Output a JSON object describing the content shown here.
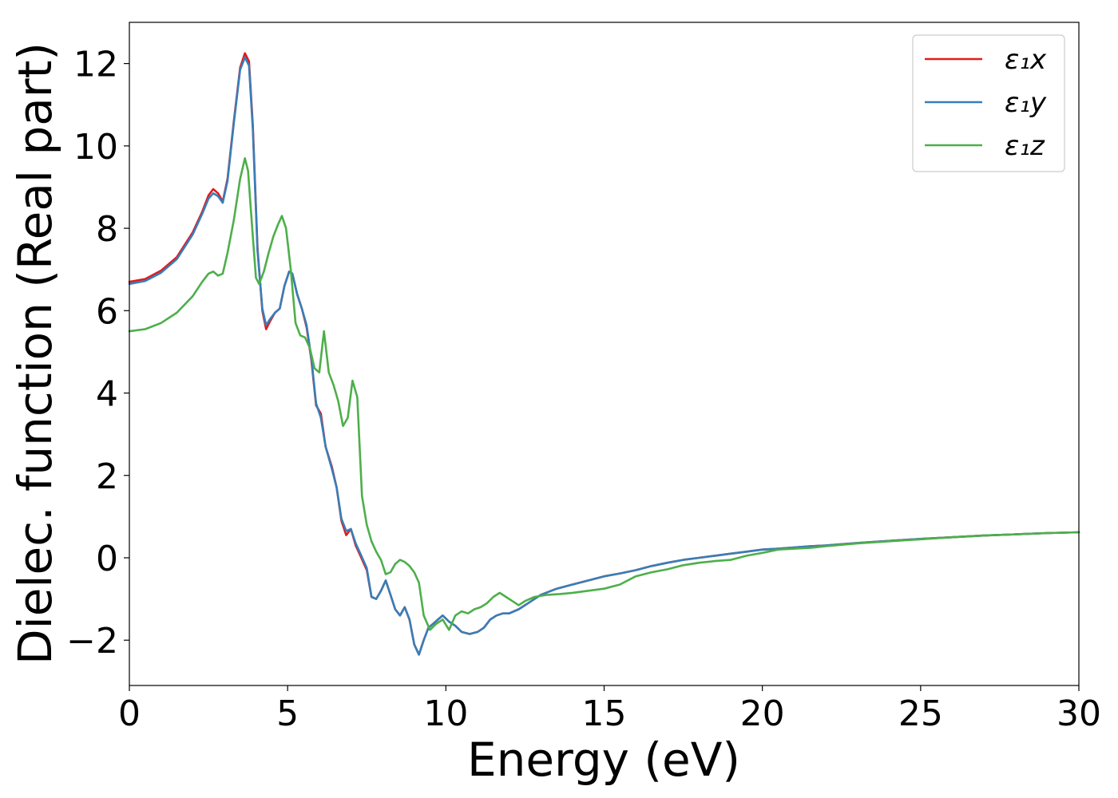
{
  "chart_data": {
    "type": "line",
    "xlabel": "Energy (eV)",
    "ylabel": "Dielec. function (Real part)",
    "xlim": [
      0,
      30
    ],
    "ylim": [
      -3.1,
      13.0
    ],
    "xticks": [
      0,
      5,
      10,
      15,
      20,
      25,
      30
    ],
    "xtick_labels": [
      "0",
      "5",
      "10",
      "15",
      "20",
      "25",
      "30"
    ],
    "yticks": [
      -2,
      0,
      2,
      4,
      6,
      8,
      10,
      12
    ],
    "ytick_labels": [
      "−2",
      "0",
      "2",
      "4",
      "6",
      "8",
      "10",
      "12"
    ],
    "grid": false,
    "legend_position": "top-right",
    "series": [
      {
        "name": "ε₁x",
        "color": "#e41a1c",
        "x": [
          0,
          0.5,
          1.0,
          1.5,
          2.0,
          2.3,
          2.5,
          2.65,
          2.8,
          2.95,
          3.1,
          3.3,
          3.5,
          3.65,
          3.78,
          3.9,
          4.05,
          4.2,
          4.32,
          4.45,
          4.6,
          4.75,
          4.9,
          5.05,
          5.15,
          5.3,
          5.45,
          5.6,
          5.75,
          5.9,
          6.05,
          6.2,
          6.4,
          6.55,
          6.7,
          6.85,
          7.0,
          7.15,
          7.3,
          7.5,
          7.65,
          7.8,
          7.95,
          8.1,
          8.25,
          8.4,
          8.55,
          8.7,
          8.85,
          9.0,
          9.15,
          9.3,
          9.45,
          9.6,
          9.75,
          9.9,
          10.1,
          10.3,
          10.5,
          10.75,
          11.0,
          11.2,
          11.4,
          11.6,
          11.8,
          12.0,
          12.3,
          12.6,
          13.0,
          13.5,
          14.0,
          14.5,
          15.0,
          15.5,
          16.0,
          16.5,
          17.0,
          17.5,
          18.0,
          18.5,
          19.0,
          19.5,
          20.0,
          20.5,
          21.0,
          21.5,
          22.0,
          23.0,
          24.0,
          25.0,
          26.0,
          27.0,
          28.0,
          29.0,
          30.0
        ],
        "y": [
          6.7,
          6.77,
          6.97,
          7.3,
          7.9,
          8.4,
          8.8,
          8.95,
          8.85,
          8.65,
          9.2,
          10.6,
          11.9,
          12.25,
          12.05,
          10.5,
          7.5,
          6.0,
          5.55,
          5.75,
          5.95,
          6.05,
          6.6,
          6.95,
          6.9,
          6.4,
          6.05,
          5.6,
          4.8,
          3.7,
          3.5,
          2.7,
          2.2,
          1.7,
          0.9,
          0.55,
          0.7,
          0.3,
          0.05,
          -0.3,
          -0.95,
          -1.0,
          -0.8,
          -0.55,
          -0.9,
          -1.25,
          -1.4,
          -1.2,
          -1.5,
          -2.1,
          -2.35,
          -2.0,
          -1.7,
          -1.6,
          -1.5,
          -1.4,
          -1.55,
          -1.65,
          -1.8,
          -1.85,
          -1.8,
          -1.7,
          -1.5,
          -1.4,
          -1.35,
          -1.35,
          -1.25,
          -1.1,
          -0.9,
          -0.75,
          -0.65,
          -0.55,
          -0.45,
          -0.38,
          -0.3,
          -0.2,
          -0.12,
          -0.05,
          0.0,
          0.05,
          0.1,
          0.15,
          0.2,
          0.22,
          0.25,
          0.28,
          0.3,
          0.36,
          0.41,
          0.46,
          0.5,
          0.54,
          0.57,
          0.6,
          0.62
        ]
      },
      {
        "name": "ε₁y",
        "color": "#377eb8",
        "x": [
          0,
          0.5,
          1.0,
          1.5,
          2.0,
          2.3,
          2.5,
          2.65,
          2.8,
          2.95,
          3.1,
          3.3,
          3.5,
          3.65,
          3.78,
          3.9,
          4.05,
          4.2,
          4.32,
          4.45,
          4.6,
          4.75,
          4.9,
          5.05,
          5.15,
          5.3,
          5.45,
          5.6,
          5.75,
          5.9,
          6.05,
          6.2,
          6.4,
          6.55,
          6.7,
          6.85,
          7.0,
          7.15,
          7.3,
          7.5,
          7.65,
          7.8,
          7.95,
          8.1,
          8.25,
          8.4,
          8.55,
          8.7,
          8.85,
          9.0,
          9.15,
          9.3,
          9.45,
          9.6,
          9.75,
          9.9,
          10.1,
          10.3,
          10.5,
          10.75,
          11.0,
          11.2,
          11.4,
          11.6,
          11.8,
          12.0,
          12.3,
          12.6,
          13.0,
          13.5,
          14.0,
          14.5,
          15.0,
          15.5,
          16.0,
          16.5,
          17.0,
          17.5,
          18.0,
          18.5,
          19.0,
          19.5,
          20.0,
          20.5,
          21.0,
          21.5,
          22.0,
          23.0,
          24.0,
          25.0,
          26.0,
          27.0,
          28.0,
          29.0,
          30.0
        ],
        "y": [
          6.65,
          6.72,
          6.92,
          7.25,
          7.85,
          8.35,
          8.72,
          8.85,
          8.78,
          8.62,
          9.15,
          10.55,
          11.85,
          12.15,
          11.95,
          10.4,
          7.45,
          6.05,
          5.65,
          5.8,
          5.95,
          6.05,
          6.6,
          6.95,
          6.9,
          6.4,
          6.05,
          5.65,
          4.85,
          3.75,
          3.4,
          2.7,
          2.15,
          1.7,
          0.95,
          0.65,
          0.7,
          0.35,
          0.1,
          -0.25,
          -0.95,
          -1.0,
          -0.8,
          -0.55,
          -0.9,
          -1.25,
          -1.4,
          -1.2,
          -1.5,
          -2.1,
          -2.35,
          -2.0,
          -1.7,
          -1.6,
          -1.5,
          -1.4,
          -1.55,
          -1.65,
          -1.8,
          -1.85,
          -1.8,
          -1.7,
          -1.5,
          -1.4,
          -1.35,
          -1.35,
          -1.25,
          -1.1,
          -0.9,
          -0.75,
          -0.65,
          -0.55,
          -0.45,
          -0.38,
          -0.3,
          -0.2,
          -0.12,
          -0.05,
          0.0,
          0.05,
          0.1,
          0.15,
          0.2,
          0.22,
          0.25,
          0.28,
          0.3,
          0.36,
          0.41,
          0.46,
          0.5,
          0.54,
          0.57,
          0.6,
          0.62
        ]
      },
      {
        "name": "ε₁z",
        "color": "#4daf4a",
        "x": [
          0,
          0.5,
          1.0,
          1.5,
          2.0,
          2.3,
          2.5,
          2.65,
          2.8,
          2.95,
          3.1,
          3.3,
          3.5,
          3.65,
          3.75,
          3.9,
          4.0,
          4.1,
          4.25,
          4.4,
          4.55,
          4.7,
          4.82,
          4.95,
          5.1,
          5.25,
          5.4,
          5.55,
          5.7,
          5.85,
          6.0,
          6.15,
          6.3,
          6.45,
          6.6,
          6.75,
          6.9,
          7.05,
          7.2,
          7.35,
          7.5,
          7.65,
          7.8,
          7.95,
          8.1,
          8.25,
          8.4,
          8.55,
          8.7,
          8.85,
          9.0,
          9.15,
          9.3,
          9.5,
          9.7,
          9.9,
          10.1,
          10.3,
          10.5,
          10.7,
          10.9,
          11.1,
          11.3,
          11.5,
          11.7,
          11.9,
          12.1,
          12.3,
          12.5,
          12.8,
          13.2,
          13.6,
          14.0,
          14.5,
          15.0,
          15.5,
          16.0,
          16.5,
          17.0,
          17.5,
          18.0,
          18.5,
          19.0,
          19.5,
          20.0,
          20.5,
          21.0,
          21.5,
          22.0,
          23.0,
          24.0,
          25.0,
          26.0,
          27.0,
          28.0,
          29.0,
          30.0
        ],
        "y": [
          5.5,
          5.55,
          5.7,
          5.95,
          6.35,
          6.7,
          6.9,
          6.95,
          6.85,
          6.9,
          7.4,
          8.2,
          9.2,
          9.7,
          9.4,
          7.8,
          6.8,
          6.65,
          6.95,
          7.4,
          7.8,
          8.1,
          8.3,
          8.0,
          7.0,
          5.7,
          5.4,
          5.35,
          5.1,
          4.6,
          4.5,
          5.5,
          4.5,
          4.2,
          3.8,
          3.2,
          3.4,
          4.3,
          3.9,
          1.5,
          0.8,
          0.4,
          0.15,
          -0.05,
          -0.4,
          -0.35,
          -0.15,
          -0.05,
          -0.1,
          -0.2,
          -0.35,
          -0.6,
          -1.4,
          -1.75,
          -1.6,
          -1.5,
          -1.75,
          -1.4,
          -1.3,
          -1.35,
          -1.25,
          -1.2,
          -1.1,
          -0.95,
          -0.85,
          -0.95,
          -1.05,
          -1.15,
          -1.05,
          -0.95,
          -0.9,
          -0.88,
          -0.85,
          -0.8,
          -0.75,
          -0.65,
          -0.45,
          -0.35,
          -0.28,
          -0.18,
          -0.12,
          -0.08,
          -0.05,
          0.05,
          0.12,
          0.2,
          0.22,
          0.24,
          0.28,
          0.35,
          0.4,
          0.45,
          0.5,
          0.54,
          0.57,
          0.6,
          0.62
        ]
      }
    ]
  }
}
